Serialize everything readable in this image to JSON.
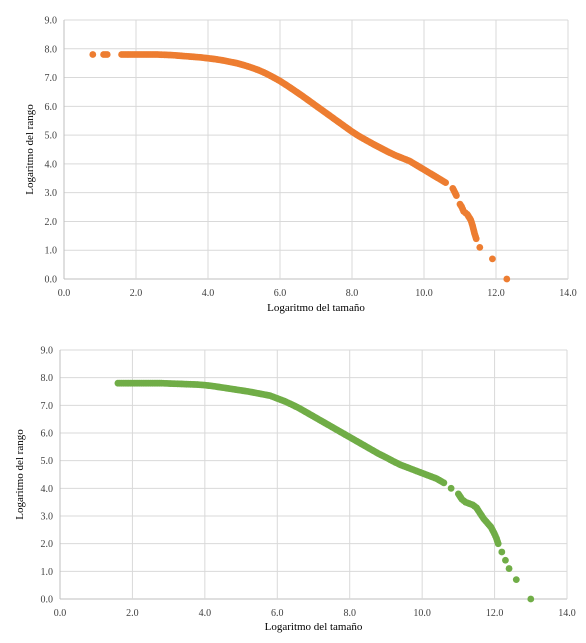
{
  "chart_data": [
    {
      "type": "scatter",
      "title": "",
      "xlabel": "Logaritmo del tamaño",
      "ylabel": "Logaritmo del rango",
      "xlim": [
        0,
        14
      ],
      "ylim": [
        0,
        9
      ],
      "x_ticks": [
        "0.0",
        "2.0",
        "4.0",
        "6.0",
        "8.0",
        "10.0",
        "12.0",
        "14.0"
      ],
      "y_ticks": [
        "0.0",
        "1.0",
        "2.0",
        "3.0",
        "4.0",
        "5.0",
        "6.0",
        "7.0",
        "8.0",
        "9.0"
      ],
      "grid": true,
      "legend": "none",
      "color": "#ED7D31",
      "series": [
        {
          "x": [
            0.8,
            1.1,
            1.2,
            1.6,
            1.7,
            1.8,
            1.9,
            2.0,
            2.2,
            2.4,
            2.6,
            2.8,
            3.0,
            3.2,
            3.4,
            3.6,
            3.8,
            4.0,
            4.2,
            4.4,
            4.6,
            4.8,
            5.0,
            5.2,
            5.4,
            5.6,
            5.8,
            6.0,
            6.2,
            6.4,
            6.6,
            6.8,
            7.0,
            7.2,
            7.4,
            7.6,
            7.8,
            8.0,
            8.2,
            8.4,
            8.6,
            8.8,
            9.0,
            9.2,
            9.4,
            9.6,
            9.8,
            10.0,
            10.2,
            10.4,
            10.6,
            10.8,
            10.9,
            11.0,
            11.05,
            11.1,
            11.2,
            11.3,
            11.35,
            11.4,
            11.45,
            11.55,
            11.9,
            12.3
          ],
          "y": [
            7.8,
            7.8,
            7.8,
            7.8,
            7.8,
            7.8,
            7.8,
            7.8,
            7.8,
            7.8,
            7.8,
            7.79,
            7.78,
            7.76,
            7.74,
            7.72,
            7.7,
            7.67,
            7.64,
            7.6,
            7.55,
            7.5,
            7.43,
            7.35,
            7.26,
            7.15,
            7.02,
            6.88,
            6.72,
            6.55,
            6.38,
            6.2,
            6.02,
            5.84,
            5.66,
            5.48,
            5.3,
            5.12,
            4.96,
            4.82,
            4.68,
            4.55,
            4.42,
            4.3,
            4.2,
            4.1,
            3.95,
            3.8,
            3.65,
            3.5,
            3.35,
            3.15,
            2.9,
            2.6,
            2.5,
            2.35,
            2.25,
            2.05,
            1.85,
            1.6,
            1.4,
            1.1,
            0.7,
            0.0
          ]
        }
      ]
    },
    {
      "type": "scatter",
      "title": "",
      "xlabel": "Logaritmo del tamaño",
      "ylabel": "Logaritmo del rango",
      "xlim": [
        0,
        14
      ],
      "ylim": [
        0,
        9
      ],
      "x_ticks": [
        "0.0",
        "2.0",
        "4.0",
        "6.0",
        "8.0",
        "10.0",
        "12.0",
        "14.0"
      ],
      "y_ticks": [
        "0.0",
        "1.0",
        "2.0",
        "3.0",
        "4.0",
        "5.0",
        "6.0",
        "7.0",
        "8.0",
        "9.0"
      ],
      "grid": true,
      "legend": "none",
      "color": "#70AD47",
      "series": [
        {
          "x": [
            1.6,
            1.8,
            2.0,
            2.2,
            2.4,
            2.6,
            2.8,
            3.0,
            3.2,
            3.4,
            3.6,
            3.8,
            4.0,
            4.2,
            4.4,
            4.6,
            4.8,
            5.0,
            5.2,
            5.4,
            5.6,
            5.8,
            6.0,
            6.2,
            6.4,
            6.6,
            6.8,
            7.0,
            7.2,
            7.4,
            7.6,
            7.8,
            8.0,
            8.2,
            8.4,
            8.6,
            8.8,
            9.0,
            9.2,
            9.4,
            9.6,
            9.8,
            10.0,
            10.2,
            10.4,
            10.6,
            10.8,
            11.0,
            11.1,
            11.2,
            11.4,
            11.5,
            11.6,
            11.7,
            11.8,
            11.9,
            12.0,
            12.05,
            12.1,
            12.2,
            12.3,
            12.4,
            12.6,
            13.0
          ],
          "y": [
            7.8,
            7.8,
            7.8,
            7.8,
            7.8,
            7.8,
            7.8,
            7.79,
            7.78,
            7.77,
            7.76,
            7.75,
            7.73,
            7.7,
            7.66,
            7.62,
            7.58,
            7.54,
            7.5,
            7.45,
            7.4,
            7.35,
            7.25,
            7.15,
            7.03,
            6.9,
            6.75,
            6.6,
            6.45,
            6.3,
            6.15,
            6.0,
            5.85,
            5.7,
            5.55,
            5.4,
            5.25,
            5.12,
            4.98,
            4.85,
            4.75,
            4.65,
            4.55,
            4.45,
            4.35,
            4.2,
            4.0,
            3.8,
            3.6,
            3.5,
            3.4,
            3.3,
            3.1,
            2.9,
            2.75,
            2.6,
            2.35,
            2.2,
            2.0,
            1.7,
            1.4,
            1.1,
            0.7,
            0.0
          ]
        }
      ]
    }
  ]
}
